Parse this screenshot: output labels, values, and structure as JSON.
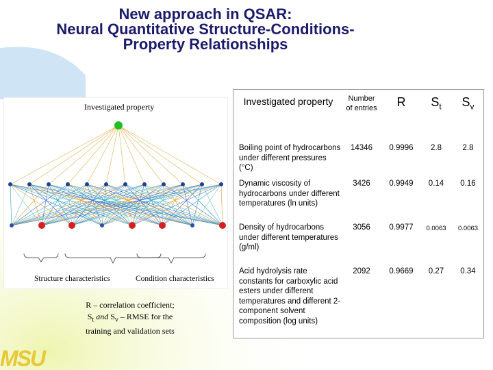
{
  "header": {
    "title_lines": [
      "New approach in QSAR:",
      "Neural Quantitative Structure-Conditions-",
      "Property Relationships"
    ]
  },
  "diagram": {
    "top_label": "Investigated property",
    "left_label": "Structure characteristics",
    "right_label": "Condition characteristics"
  },
  "note": {
    "line1": "R – correlation coefficient;",
    "line2": {
      "s1": "S",
      "s1_sub": "t",
      "and": " and ",
      "s2": "S",
      "s2_sub": "v",
      "rest": " – RMSE for the"
    },
    "line3": "training and validation sets"
  },
  "table": {
    "header": {
      "property": "Investigated property",
      "entries": "Number of entries",
      "r": "R",
      "st": {
        "main": "S",
        "sub": "t"
      },
      "sv": {
        "main": "S",
        "sub": "v"
      }
    },
    "rows": [
      [
        "Boiling point of hydrocarbons under different pressures (°C)",
        "14346",
        "0.9996",
        "2.8",
        "2.8"
      ],
      [
        "Dynamic viscosity of hydrocarbons under different temperatures (ln units)",
        "3426",
        "0.9949",
        "0.14",
        "0.16"
      ],
      [
        "Density of hydrocarbons under different temperatures (g/ml)",
        "3056",
        "0.9977",
        "0.0063",
        "0.0063"
      ],
      [
        "Acid hydrolysis rate constants for carboxylic acid esters under different temperatures and different 2-component solvent composition (log units)",
        "2092",
        "0.9669",
        "0.27",
        "0.34"
      ]
    ]
  },
  "logo": "MSU"
}
